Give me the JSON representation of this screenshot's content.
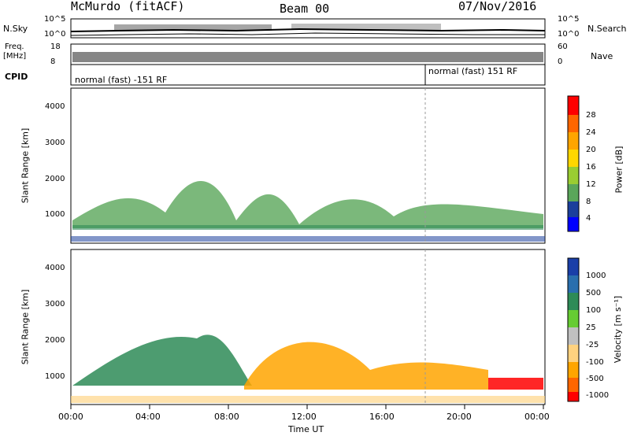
{
  "header": {
    "station": "McMurdo (fitACF)",
    "beam": "Beam 00",
    "date": "07/Nov/2016"
  },
  "noise_panel": {
    "left_label": "N.Sky",
    "right_label": "N.Search",
    "left_ticks": [
      "10^5",
      "10^0"
    ],
    "right_ticks": [
      "10^5",
      "10^0"
    ]
  },
  "freq_panel": {
    "left_label_line1": "Freq.",
    "left_label_line2": "[MHz]",
    "left_ticks": [
      "18",
      "8"
    ],
    "right_label": "Nave",
    "right_ticks": [
      "60",
      "0"
    ]
  },
  "cpid_panel": {
    "label": "CPID",
    "segment1": "normal (fast) -151 RF",
    "segment2": "normal (fast) 151 RF"
  },
  "power_panel": {
    "ylabel": "Slant Range [km]",
    "yticks": [
      "4000",
      "3000",
      "2000",
      "1000"
    ],
    "colorbar_label": "Power [dB]",
    "colorbar_ticks": [
      "28",
      "24",
      "20",
      "16",
      "12",
      "8",
      "4"
    ],
    "colors": [
      "#0000ff",
      "#1b3f9c",
      "#2e8b57",
      "#5aa65a",
      "#9acd32",
      "#ffd700",
      "#ffa500",
      "#ff6600",
      "#ff0000"
    ]
  },
  "velocity_panel": {
    "ylabel": "Slant Range [km]",
    "yticks": [
      "4000",
      "3000",
      "2000",
      "1000"
    ],
    "colorbar_label": "Velocity [m s⁻¹]",
    "colorbar_ticks": [
      "1000",
      "500",
      "100",
      "25",
      "-25",
      "-100",
      "-500",
      "-1000"
    ],
    "colors": [
      "#1a3fa8",
      "#2a6fae",
      "#2e8b57",
      "#66cc33",
      "#c0c0c0",
      "#ffd27f",
      "#ffa500",
      "#ff6600",
      "#ff0000"
    ]
  },
  "xaxis": {
    "label": "Time UT",
    "ticks": [
      "00:00",
      "04:00",
      "08:00",
      "12:00",
      "16:00",
      "20:00",
      "00:00"
    ]
  },
  "chart_data": {
    "type": "heatmap",
    "title": "McMurdo (fitACF) Beam 00 07/Nov/2016",
    "xlabel": "Time UT",
    "ylabel": "Slant Range [km]",
    "x_range": [
      "00:00",
      "24:00"
    ],
    "ylim": [
      180,
      4500
    ],
    "panels": [
      {
        "name": "Power",
        "unit": "dB",
        "colorbar": [
          4,
          8,
          12,
          16,
          20,
          24,
          28
        ]
      },
      {
        "name": "Velocity",
        "unit": "m s-1",
        "colorbar": [
          -1000,
          -500,
          -100,
          -25,
          25,
          100,
          500,
          1000
        ]
      }
    ],
    "mode_change_time": "18:00"
  }
}
